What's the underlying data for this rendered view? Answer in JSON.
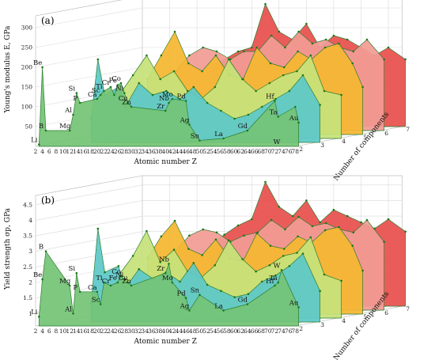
{
  "chart_data": [
    {
      "type": "area",
      "panel_label": "(a)",
      "ylabel": "Young's modulus E, GPa",
      "xlabel": "Atomic number Z",
      "zlabel": "Number of components",
      "y_ticks": [
        50,
        100,
        150,
        200,
        250,
        300
      ],
      "ylim": [
        0,
        330
      ],
      "x_ticks": [
        2,
        4,
        6,
        8,
        10,
        12,
        14,
        16,
        18,
        20,
        22,
        24,
        26,
        28,
        30,
        32,
        34,
        36,
        38,
        40,
        42,
        44,
        46,
        48,
        50,
        52,
        54,
        56,
        58,
        60,
        62,
        64,
        66,
        68,
        70,
        72,
        74,
        76,
        78
      ],
      "z_ticks": [
        2,
        3,
        4,
        5,
        6,
        7
      ],
      "series": [
        {
          "name": "2",
          "x": [
            3,
            4,
            5,
            12,
            13,
            14,
            15,
            20,
            21,
            22,
            24,
            25,
            26,
            27,
            28,
            29,
            30,
            40,
            41,
            42,
            46,
            47,
            50,
            57,
            64,
            72,
            73,
            78,
            79
          ],
          "y": [
            5,
            200,
            40,
            40,
            80,
            135,
            110,
            120,
            130,
            140,
            150,
            130,
            155,
            160,
            135,
            110,
            100,
            90,
            110,
            120,
            115,
            55,
            15,
            20,
            40,
            115,
            75,
            100,
            60
          ],
          "labels": [
            {
              "text": "Li",
              "x": 3
            },
            {
              "text": "Be",
              "x": 4
            },
            {
              "text": "B",
              "x": 5
            },
            {
              "text": "Mg",
              "x": 12
            },
            {
              "text": "Al",
              "x": 13
            },
            {
              "text": "Si",
              "x": 14
            },
            {
              "text": "P",
              "x": 15
            },
            {
              "text": "Ca",
              "x": 20
            },
            {
              "text": "Sc",
              "x": 21
            },
            {
              "text": "Ti",
              "x": 22
            },
            {
              "text": "Cr",
              "x": 24
            },
            {
              "text": "Fe",
              "x": 26
            },
            {
              "text": "Co",
              "x": 27
            },
            {
              "text": "Ni",
              "x": 28
            },
            {
              "text": "Cu",
              "x": 29
            },
            {
              "text": "Zn",
              "x": 30
            },
            {
              "text": "Zr",
              "x": 40
            },
            {
              "text": "Nb",
              "x": 41
            },
            {
              "text": "Mo",
              "x": 42
            },
            {
              "text": "Pd",
              "x": 46
            },
            {
              "text": "Ag",
              "x": 47
            },
            {
              "text": "Sn",
              "x": 50
            },
            {
              "text": "La",
              "x": 57
            },
            {
              "text": "Gd",
              "x": 64
            },
            {
              "text": "Hf",
              "x": 72
            },
            {
              "text": "Ta",
              "x": 73
            },
            {
              "text": "W",
              "x": 74
            },
            {
              "text": "Au",
              "x": 79
            }
          ]
        },
        {
          "name": "3",
          "x": [
            12,
            14,
            16,
            20,
            22,
            26,
            30,
            34,
            38,
            42,
            46,
            50,
            54,
            58,
            62,
            66,
            70,
            74,
            79
          ],
          "y": [
            60,
            210,
            120,
            140,
            90,
            150,
            120,
            130,
            110,
            140,
            100,
            80,
            60,
            70,
            90,
            110,
            130,
            170,
            95
          ]
        },
        {
          "name": "4",
          "x": [
            14,
            18,
            22,
            26,
            30,
            34,
            38,
            42,
            46,
            50,
            54,
            58,
            62,
            66,
            70,
            74,
            79
          ],
          "y": [
            110,
            160,
            210,
            150,
            170,
            120,
            100,
            130,
            200,
            150,
            120,
            140,
            160,
            170,
            210,
            120,
            110
          ]
        },
        {
          "name": "5",
          "x": [
            16,
            20,
            24,
            28,
            32,
            36,
            40,
            44,
            48,
            52,
            56,
            60,
            64,
            68,
            72,
            76,
            79
          ],
          "y": [
            140,
            200,
            260,
            180,
            160,
            200,
            150,
            140,
            220,
            180,
            170,
            210,
            190,
            220,
            230,
            180,
            120
          ]
        },
        {
          "name": "6",
          "x": [
            18,
            22,
            26,
            30,
            34,
            38,
            42,
            46,
            50,
            54,
            58,
            62,
            66,
            70,
            74,
            79
          ],
          "y": [
            150,
            190,
            210,
            200,
            180,
            200,
            200,
            240,
            210,
            250,
            220,
            230,
            210,
            200,
            230,
            180
          ]
        },
        {
          "name": "7",
          "x": [
            22,
            26,
            30,
            34,
            38,
            42,
            46,
            50,
            54,
            58,
            62,
            66,
            70,
            74,
            79
          ],
          "y": [
            150,
            170,
            190,
            200,
            310,
            240,
            220,
            260,
            200,
            230,
            220,
            200,
            180,
            200,
            170
          ]
        }
      ]
    },
    {
      "type": "area",
      "panel_label": "(b)",
      "ylabel": "Yield strength σp, GPa",
      "xlabel": "Atomic number Z",
      "zlabel": "Number of components",
      "y_ticks": [
        1,
        1.5,
        2,
        2.5,
        3,
        3.5,
        4,
        4.5
      ],
      "ylim": [
        0.6,
        4.8
      ],
      "x_ticks": [
        2,
        4,
        6,
        8,
        10,
        12,
        14,
        16,
        18,
        20,
        22,
        24,
        26,
        28,
        30,
        32,
        34,
        36,
        38,
        40,
        42,
        44,
        46,
        48,
        50,
        52,
        54,
        56,
        58,
        60,
        62,
        64,
        66,
        68,
        70,
        72,
        74,
        76,
        78
      ],
      "z_ticks": [
        2,
        3,
        4,
        5,
        6,
        7
      ],
      "series": [
        {
          "name": "2",
          "x": [
            3,
            4,
            5,
            12,
            13,
            14,
            15,
            20,
            21,
            22,
            24,
            26,
            27,
            28,
            29,
            30,
            40,
            41,
            42,
            46,
            47,
            50,
            57,
            64,
            72,
            73,
            74,
            79
          ],
          "y": [
            0.9,
            2.1,
            3.0,
            1.9,
            1.0,
            2.3,
            1.7,
            1.7,
            1.3,
            2.0,
            1.9,
            2.0,
            2.2,
            2.1,
            2.0,
            1.9,
            2.3,
            2.6,
            2.0,
            1.5,
            1.1,
            1.6,
            1.1,
            1.3,
            1.9,
            2.0,
            2.4,
            1.2
          ],
          "labels": [
            {
              "text": "Li",
              "x": 3
            },
            {
              "text": "Be",
              "x": 4
            },
            {
              "text": "B",
              "x": 5
            },
            {
              "text": "Mg",
              "x": 12
            },
            {
              "text": "Al",
              "x": 13
            },
            {
              "text": "Si",
              "x": 14
            },
            {
              "text": "P",
              "x": 15
            },
            {
              "text": "Ca",
              "x": 20
            },
            {
              "text": "Sc",
              "x": 21
            },
            {
              "text": "Ti",
              "x": 22
            },
            {
              "text": "Cr",
              "x": 24
            },
            {
              "text": "Fe",
              "x": 26
            },
            {
              "text": "Co",
              "x": 27
            },
            {
              "text": "Ni",
              "x": 28
            },
            {
              "text": "Cu",
              "x": 29
            },
            {
              "text": "Zn",
              "x": 30
            },
            {
              "text": "Zr",
              "x": 40
            },
            {
              "text": "Nb",
              "x": 41
            },
            {
              "text": "Mo",
              "x": 42
            },
            {
              "text": "Pd",
              "x": 46
            },
            {
              "text": "Ag",
              "x": 47
            },
            {
              "text": "Sn",
              "x": 50
            },
            {
              "text": "La",
              "x": 57
            },
            {
              "text": "Gd",
              "x": 64
            },
            {
              "text": "Hf",
              "x": 72
            },
            {
              "text": "Ta",
              "x": 73
            },
            {
              "text": "W",
              "x": 74
            },
            {
              "text": "Au",
              "x": 79
            }
          ]
        },
        {
          "name": "3",
          "x": [
            12,
            14,
            16,
            20,
            22,
            26,
            30,
            34,
            38,
            42,
            46,
            50,
            54,
            58,
            62,
            66,
            70,
            74,
            79
          ],
          "y": [
            1.2,
            3.6,
            2.2,
            2.4,
            1.7,
            2.3,
            2.0,
            2.2,
            1.9,
            2.5,
            1.8,
            1.6,
            1.4,
            1.5,
            1.9,
            2.1,
            2.4,
            2.8,
            1.6
          ]
        },
        {
          "name": "4",
          "x": [
            14,
            18,
            22,
            26,
            30,
            34,
            38,
            42,
            46,
            50,
            54,
            58,
            62,
            66,
            70,
            74,
            79
          ],
          "y": [
            2.0,
            2.6,
            3.4,
            2.4,
            2.8,
            2.1,
            1.9,
            2.3,
            3.1,
            2.5,
            2.1,
            2.3,
            2.6,
            2.7,
            3.2,
            2.0,
            1.8
          ]
        },
        {
          "name": "5",
          "x": [
            16,
            20,
            24,
            28,
            32,
            36,
            40,
            44,
            48,
            52,
            56,
            60,
            64,
            68,
            72,
            76,
            79
          ],
          "y": [
            2.4,
            3.1,
            3.6,
            2.7,
            2.5,
            3.0,
            2.4,
            2.3,
            3.2,
            2.8,
            2.7,
            3.1,
            2.9,
            3.3,
            3.4,
            2.8,
            2.0
          ]
        },
        {
          "name": "6",
          "x": [
            18,
            22,
            26,
            30,
            34,
            38,
            42,
            46,
            50,
            54,
            58,
            62,
            66,
            70,
            74,
            79
          ],
          "y": [
            2.5,
            3.0,
            3.2,
            3.1,
            2.8,
            3.0,
            3.1,
            3.5,
            3.2,
            3.6,
            3.3,
            3.4,
            3.2,
            3.1,
            3.5,
            2.8
          ]
        },
        {
          "name": "7",
          "x": [
            22,
            26,
            30,
            34,
            38,
            42,
            46,
            50,
            54,
            58,
            62,
            66,
            70,
            74,
            79
          ],
          "y": [
            2.6,
            2.9,
            3.2,
            3.4,
            4.6,
            3.8,
            3.5,
            4.0,
            3.3,
            3.7,
            3.5,
            3.3,
            3.1,
            3.4,
            3.0
          ]
        }
      ]
    }
  ],
  "colors": [
    "#74c476",
    "#5ec8c8",
    "#c6e27a",
    "#f5b731",
    "#f29c94",
    "#e8504d"
  ]
}
